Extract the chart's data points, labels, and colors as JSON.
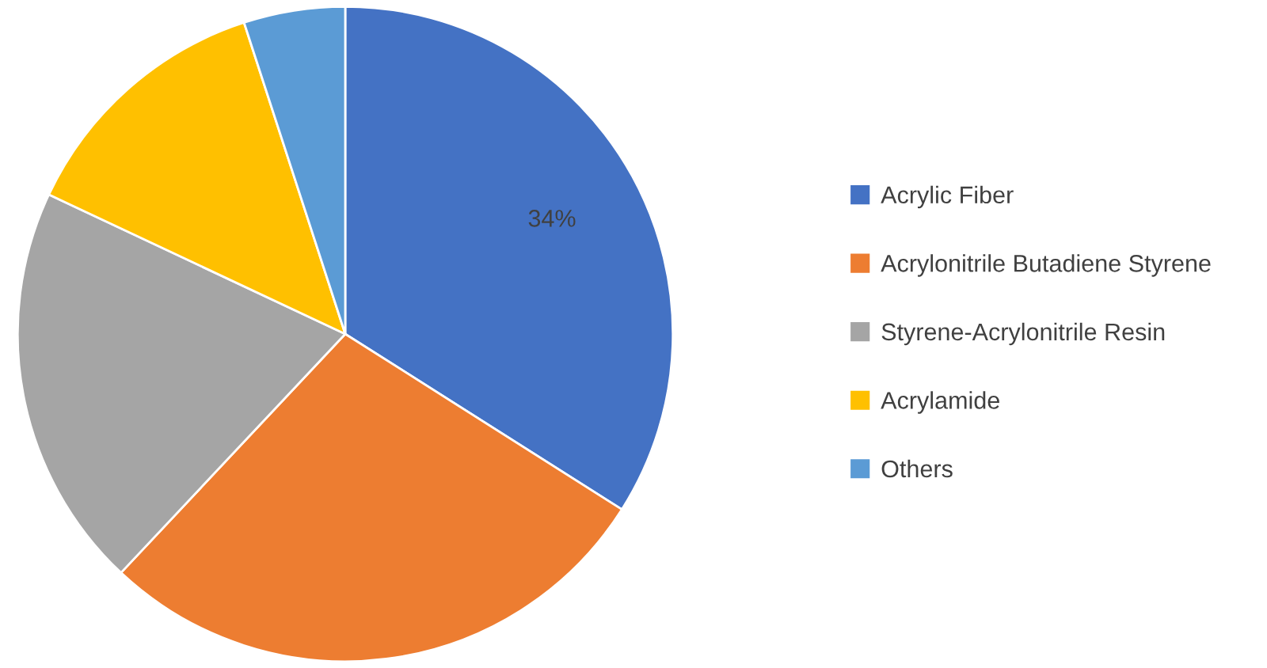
{
  "chart_data": {
    "type": "pie",
    "categories": [
      "Acrylic Fiber",
      "Acrylonitrile Butadiene Styrene",
      "Styrene-Acrylonitrile Resin",
      "Acrylamide",
      "Others"
    ],
    "values": [
      34,
      28,
      20,
      13,
      5
    ],
    "colors": [
      "#4472c4",
      "#ed7d31",
      "#a5a5a5",
      "#ffc000",
      "#5b9bd5"
    ],
    "value_labels": [
      "34%",
      null,
      null,
      null,
      null
    ],
    "legend": "right"
  }
}
